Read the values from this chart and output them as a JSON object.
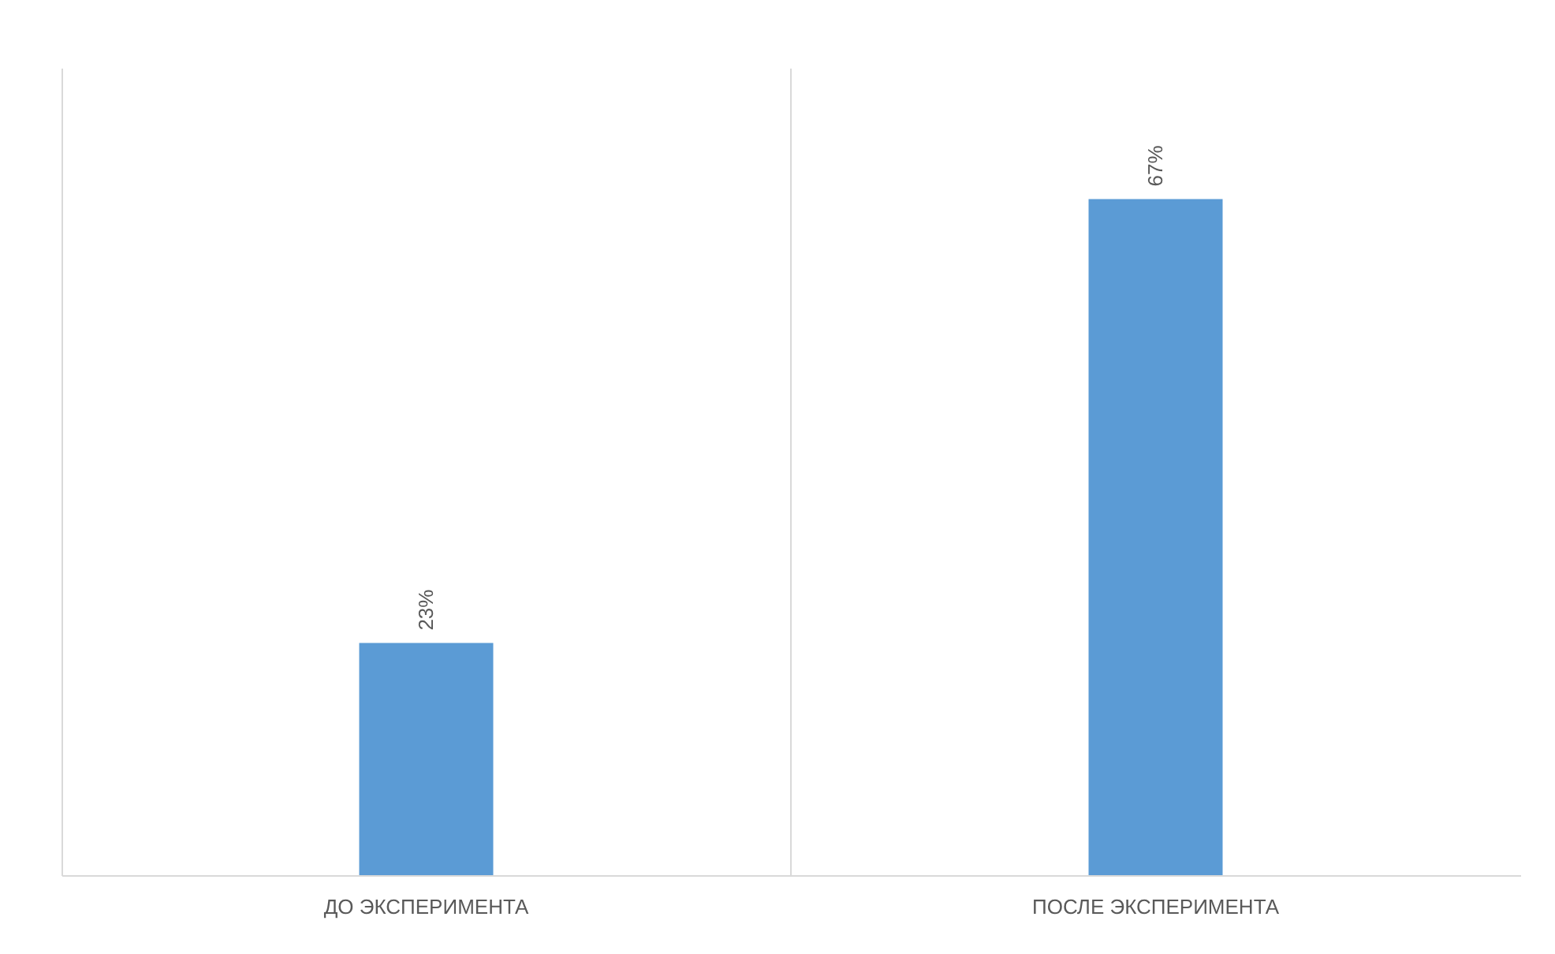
{
  "chart_data": {
    "type": "bar",
    "categories": [
      "ДО ЭКСПЕРИМЕНТА",
      "ПОСЛЕ ЭКСПЕРИМЕНТА"
    ],
    "values": [
      23,
      67
    ],
    "value_labels": [
      "23%",
      "67%"
    ],
    "color": "#5b9bd5",
    "ylim": [
      0,
      80
    ],
    "grid": "x",
    "tick_labels": "x"
  }
}
